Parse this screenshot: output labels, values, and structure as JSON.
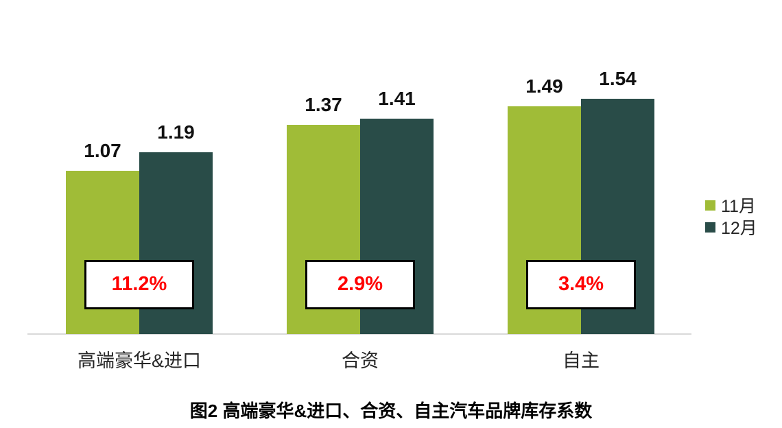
{
  "chart_data": {
    "type": "bar",
    "categories": [
      "高端豪华&进口",
      "合资",
      "自主"
    ],
    "series": [
      {
        "name": "11月",
        "color": "#a0bc37",
        "values": [
          1.07,
          1.37,
          1.49
        ]
      },
      {
        "name": "12月",
        "color": "#294c48",
        "values": [
          1.19,
          1.41,
          1.54
        ]
      }
    ],
    "change_labels": [
      "11.2%",
      "2.9%",
      "3.4%"
    ],
    "title": "图2 高端豪华&进口、合资、自主汽车品牌库存系数",
    "xlabel": "",
    "ylabel": "",
    "ylim": [
      0,
      1.6
    ],
    "grid": false,
    "legend_position": "right",
    "value_label_format": "0.00"
  },
  "colors": {
    "change_text": "#ff0000",
    "change_box_border": "#000000",
    "change_box_bg": "#ffffff",
    "axis_line": "#d9d9d9",
    "value_text": "#111111",
    "category_text": "#262626"
  }
}
